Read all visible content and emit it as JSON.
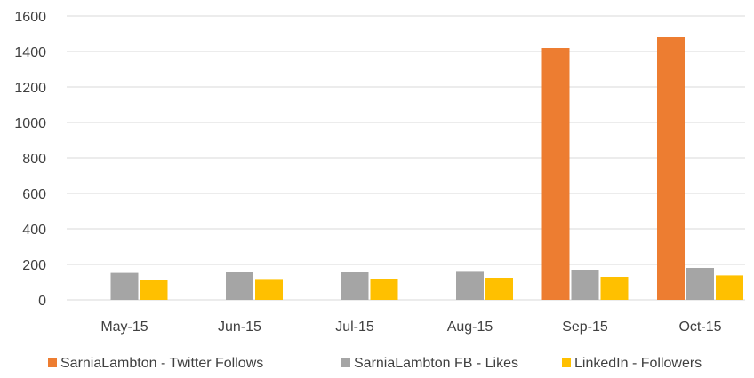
{
  "chart_data": {
    "type": "bar",
    "title": "",
    "xlabel": "",
    "ylabel": "",
    "ylim": [
      0,
      1600
    ],
    "yticks": [
      0,
      200,
      400,
      600,
      800,
      1000,
      1200,
      1400,
      1600
    ],
    "categories": [
      "May-15",
      "Jun-15",
      "Jul-15",
      "Aug-15",
      "Sep-15",
      "Oct-15"
    ],
    "series": [
      {
        "name": "SarniaLambton - Twitter Follows",
        "color": "#ed7d31",
        "values": [
          0,
          0,
          0,
          0,
          1420,
          1480
        ]
      },
      {
        "name": "SarniaLambton FB - Likes",
        "color": "#a5a5a5",
        "values": [
          152,
          158,
          160,
          163,
          170,
          180
        ]
      },
      {
        "name": "LinkedIn - Followers",
        "color": "#ffc000",
        "values": [
          112,
          118,
          120,
          125,
          130,
          138
        ]
      }
    ],
    "grid": true,
    "legend_position": "bottom"
  }
}
